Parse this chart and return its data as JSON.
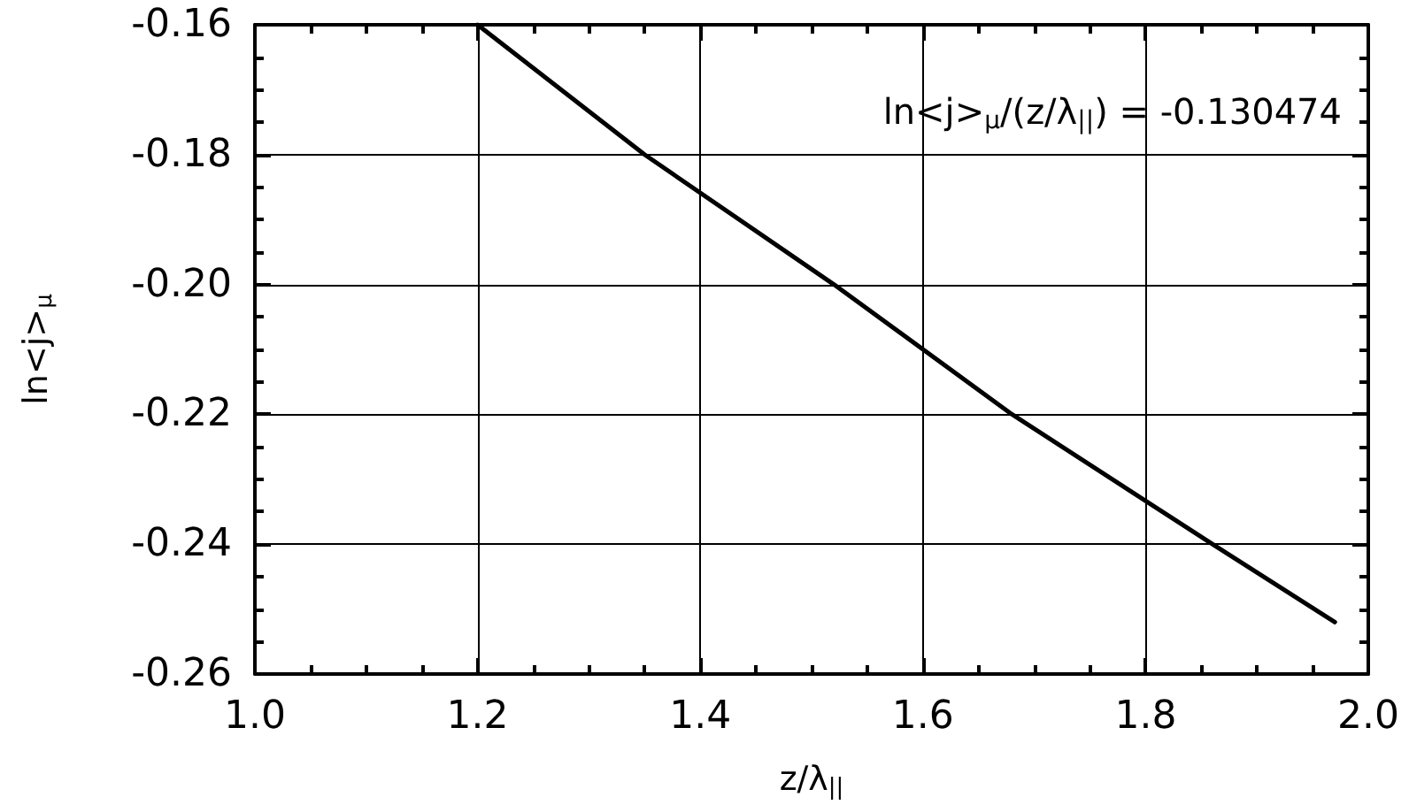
{
  "chart_data": {
    "type": "line",
    "xlabel": "z/λ$_{||}$",
    "ylabel": "ln<j>$_{μ}$",
    "annotations": [
      "ln<j>$_{μ}$/(z/λ$_{||}$) = -0.130474"
    ],
    "x": [
      1.2,
      1.35,
      1.52,
      1.68,
      1.86,
      1.97
    ],
    "series": [
      {
        "color": "#000000",
        "values": [
          -0.16,
          -0.18,
          -0.2,
          -0.22,
          -0.24,
          -0.252
        ]
      }
    ],
    "xlim": [
      1,
      2
    ],
    "xticks": [
      {
        "value": 1,
        "label": "1.0"
      },
      1.2,
      1.4,
      1.6,
      1.8,
      {
        "value": 2,
        "label": "2.0"
      }
    ],
    "ylim": [
      -0.26,
      -0.16
    ],
    "yticks": [
      -0.26,
      -0.24,
      -0.22,
      {
        "value": -0.2,
        "label": "-0.20"
      },
      -0.18,
      -0.16
    ],
    "grid": true,
    "marker": "none",
    "line_style": "solid"
  }
}
